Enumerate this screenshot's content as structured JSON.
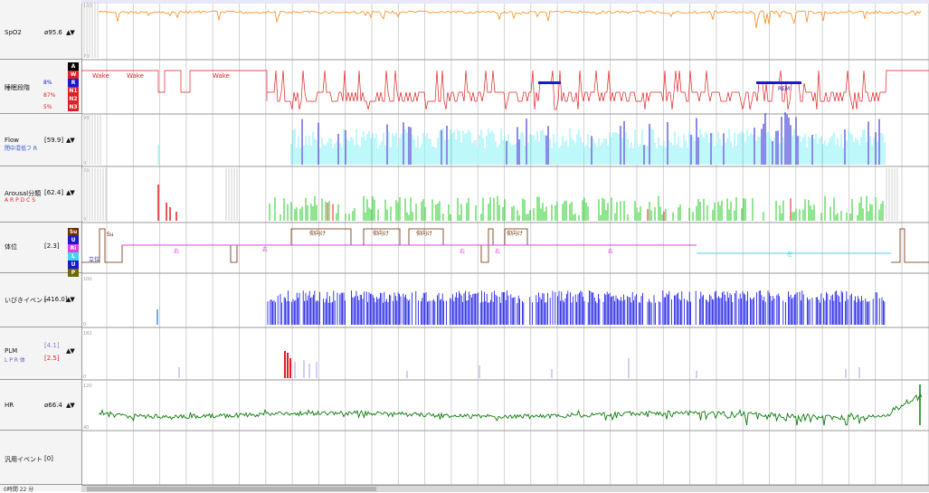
{
  "lanes": {
    "spo2": {
      "name": "SpO2",
      "value": "ø95.6",
      "scale_top": "100",
      "scale_bottom": "70"
    },
    "sleep": {
      "name": "睡眠段階",
      "percent_r": "8%",
      "percent_n1": "87%",
      "percent_n3": "5%",
      "stages": [
        {
          "code": "A",
          "color": "#000000"
        },
        {
          "code": "W",
          "color": "#e02020"
        },
        {
          "code": "R",
          "color": "#1a1acc"
        },
        {
          "code": "N1",
          "color": "#e02020"
        },
        {
          "code": "N2",
          "color": "#e02020"
        },
        {
          "code": "N3",
          "color": "#e02020"
        }
      ],
      "plot_labels": [
        "Wake",
        "Wake",
        "Wake",
        "REM"
      ]
    },
    "flow": {
      "name": "Flow",
      "value": "[59.9]",
      "scale_top": "98",
      "scale_bottom": "0",
      "legend": "閉中混低フ R"
    },
    "arousal": {
      "name": "Arousal分類",
      "value": "[62.4]",
      "scale_top": "25",
      "scale_bottom": "0",
      "legend": "A R P D C S"
    },
    "position": {
      "name": "体位",
      "value": "[2.3]",
      "states": [
        {
          "code": "Su",
          "color": "#6b2a00"
        },
        {
          "code": "U",
          "color": "#1a1acc"
        },
        {
          "code": "Ri",
          "color": "#e040e0"
        },
        {
          "code": "L",
          "color": "#40d8e8"
        },
        {
          "code": "U",
          "color": "#1a1acc"
        },
        {
          "code": "P",
          "color": "#6b6b00"
        }
      ],
      "plot_labels": [
        "Su",
        "立位",
        "右",
        "右",
        "仰向け",
        "仰向け",
        "仰向け",
        "右",
        "右",
        "仰向け",
        "右",
        "左"
      ]
    },
    "snore": {
      "name": "いびきイベント",
      "value": "[416.0]",
      "scale_top": "100",
      "scale_bottom": "0"
    },
    "plm": {
      "name": "PLM",
      "value_a": "[4.1]",
      "value_b": "[2.5]",
      "scale_top": "182",
      "scale_bottom": "0",
      "legend": "L P R 体"
    },
    "hr": {
      "name": "HR",
      "value": "ø66.4",
      "scale_top": "120",
      "scale_bottom": "40"
    },
    "general": {
      "name": "汎用イベント",
      "value": "[0]"
    }
  },
  "footer": {
    "label": "0時間 22 分"
  },
  "colors": {
    "spo2": "#ff8c1a",
    "sleep": "#e02020",
    "rem": "#1a1acc",
    "flow": "#7ff0f5",
    "flow_dark": "#1a1acc",
    "arousal": "#22cc22",
    "arousal_red": "#e02020",
    "position": "#e040e0",
    "left": "#40d8e8",
    "snore": "#0a0ae6",
    "plm": "#a0a0e0",
    "plm_red": "#e02020",
    "hr": "#0a7a0a"
  }
}
